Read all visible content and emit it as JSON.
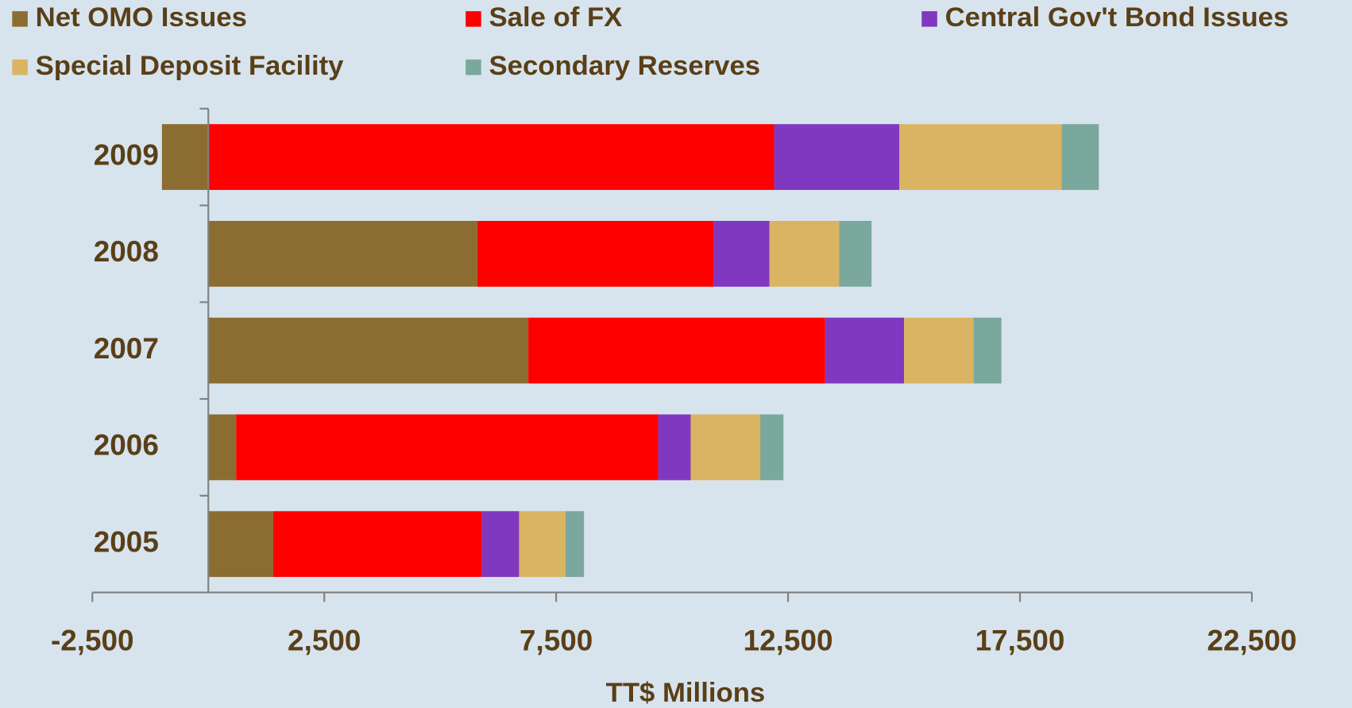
{
  "chart_data": {
    "type": "stacked_barh",
    "categories": [
      "2009",
      "2008",
      "2007",
      "2006",
      "2005"
    ],
    "series": [
      {
        "name": "Net OMO Issues",
        "color": "#8c6d31",
        "values": [
          -1000,
          5800,
          6900,
          600,
          1400
        ]
      },
      {
        "name": "Sale of FX",
        "color": "#ff0000",
        "values": [
          12200,
          5100,
          6400,
          9100,
          4500
        ]
      },
      {
        "name": "Central Gov't Bond Issues",
        "color": "#8038c0",
        "values": [
          2700,
          1200,
          1700,
          700,
          800
        ]
      },
      {
        "name": "Special Deposit Facility",
        "color": "#dab462",
        "values": [
          3500,
          1500,
          1500,
          1500,
          1000
        ]
      },
      {
        "name": "Secondary Reserves",
        "color": "#7aa89c",
        "values": [
          800,
          700,
          600,
          500,
          400
        ]
      }
    ],
    "xlabel": "TT$ Millions",
    "xlim": [
      -2500,
      22500
    ],
    "xticks": [
      {
        "value": -2500,
        "label": "-2,500"
      },
      {
        "value": 2500,
        "label": "2,500"
      },
      {
        "value": 7500,
        "label": "7,500"
      },
      {
        "value": 12500,
        "label": "12,500"
      },
      {
        "value": 17500,
        "label": "17,500"
      },
      {
        "value": 22500,
        "label": "22,500"
      }
    ],
    "legend": "top"
  }
}
